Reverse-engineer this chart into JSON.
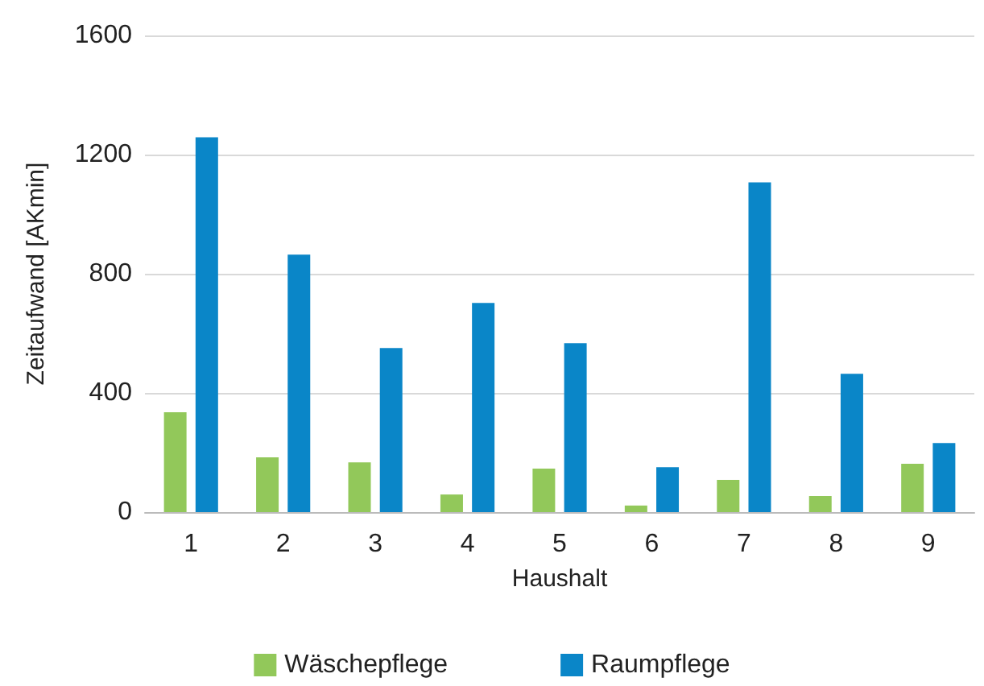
{
  "chart_data": {
    "type": "bar",
    "xlabel": "Haushalt",
    "ylabel": "Zeitaufwand [AKmin]",
    "categories": [
      "1",
      "2",
      "3",
      "4",
      "5",
      "6",
      "7",
      "8",
      "9"
    ],
    "series": [
      {
        "name": "Wäschepflege",
        "color": "#92c85a",
        "values": [
          335,
          184,
          167,
          59,
          146,
          22,
          108,
          54,
          162
        ]
      },
      {
        "name": "Raumpflege",
        "color": "#0a86c8",
        "values": [
          1258,
          864,
          551,
          702,
          567,
          151,
          1107,
          464,
          232
        ]
      }
    ],
    "ylim": [
      0,
      1600
    ],
    "yticks": [
      0,
      400,
      800,
      1200,
      1600
    ],
    "grid": "y",
    "legend": "bottom"
  }
}
